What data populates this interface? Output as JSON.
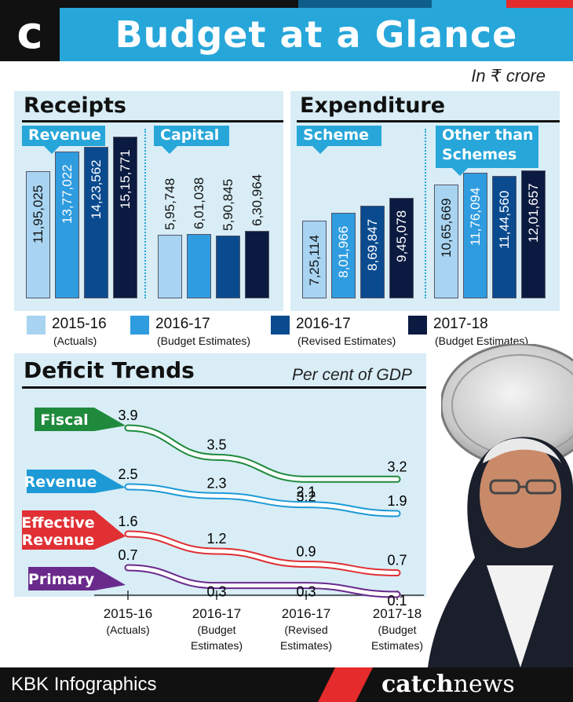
{
  "header": {
    "logo_letter": "c",
    "title": "Budget at a Glance",
    "unit": "In ₹ crore"
  },
  "colors": {
    "header_blue": "#27a6d9",
    "panel_bg": "#d8edf6",
    "c2015": "#a8d4f2",
    "c2016be": "#2f9ce0",
    "c2016re": "#0a4a8f",
    "c2017": "#0b1a40",
    "fiscal": "#1f8a3c",
    "revenue": "#1d9ad6",
    "effective": "#e03034",
    "primary": "#6a2a8c"
  },
  "legend": [
    {
      "year": "2015-16",
      "sub": "(Actuals)"
    },
    {
      "year": "2016-17",
      "sub": "(Budget Estimates)"
    },
    {
      "year": "2016-17",
      "sub": "(Revised Estimates)"
    },
    {
      "year": "2017-18",
      "sub": "(Budget Estimates)"
    }
  ],
  "chart_data": [
    {
      "type": "bar",
      "title": "Receipts",
      "categories": [
        "2015-16 (Actuals)",
        "2016-17 (Budget Estimates)",
        "2016-17 (Revised Estimates)",
        "2017-18 (Budget Estimates)"
      ],
      "groups": [
        {
          "name": "Revenue",
          "values": [
            1195025,
            1377022,
            1423562,
            1515771
          ],
          "labels": [
            "11,95,025",
            "13,77,022",
            "14,23,562",
            "15,15,771"
          ]
        },
        {
          "name": "Capital",
          "values": [
            595748,
            601038,
            590845,
            630964
          ],
          "labels": [
            "5,95,748",
            "6,01,038",
            "5,90,845",
            "6,30,964"
          ]
        }
      ]
    },
    {
      "type": "bar",
      "title": "Expenditure",
      "categories": [
        "2015-16 (Actuals)",
        "2016-17 (Budget Estimates)",
        "2016-17 (Revised Estimates)",
        "2017-18 (Budget Estimates)"
      ],
      "groups": [
        {
          "name": "Scheme",
          "values": [
            725114,
            801966,
            869847,
            945078
          ],
          "labels": [
            "7,25,114",
            "8,01,966",
            "8,69,847",
            "9,45,078"
          ]
        },
        {
          "name": "Other than Schemes",
          "name_lines": [
            "Other than",
            "Schemes"
          ],
          "values": [
            1065669,
            1176094,
            1144560,
            1201657
          ],
          "labels": [
            "10,65,669",
            "11,76,094",
            "11,44,560",
            "12,01,657"
          ]
        }
      ]
    },
    {
      "type": "line",
      "title": "Deficit Trends",
      "unit": "Per cent of GDP",
      "x": [
        {
          "year": "2015-16",
          "sub": [
            "(Actuals)"
          ]
        },
        {
          "year": "2016-17",
          "sub": [
            "(Budget",
            "Estimates)"
          ]
        },
        {
          "year": "2016-17",
          "sub": [
            "(Revised",
            "Estimates)"
          ]
        },
        {
          "year": "2017-18",
          "sub": [
            "(Budget",
            "Estimates)"
          ]
        }
      ],
      "series": [
        {
          "name": "Fiscal",
          "name_lines": [
            "Fiscal"
          ],
          "values": [
            3.9,
            3.5,
            3.2,
            3.2
          ],
          "color": "#1f8a3c"
        },
        {
          "name": "Revenue",
          "name_lines": [
            "Revenue"
          ],
          "values": [
            2.5,
            2.3,
            2.1,
            1.9
          ],
          "color": "#1d9ad6"
        },
        {
          "name": "Effective Revenue",
          "name_lines": [
            "Effective",
            "Revenue"
          ],
          "values": [
            1.6,
            1.2,
            0.9,
            0.7
          ],
          "color": "#e03034"
        },
        {
          "name": "Primary",
          "name_lines": [
            "Primary"
          ],
          "values": [
            0.7,
            0.3,
            0.3,
            0.1
          ],
          "color": "#6a2a8c"
        }
      ]
    }
  ],
  "footer": {
    "brand": "KBK Infographics",
    "logo_bold": "catch",
    "logo_light": "news"
  }
}
